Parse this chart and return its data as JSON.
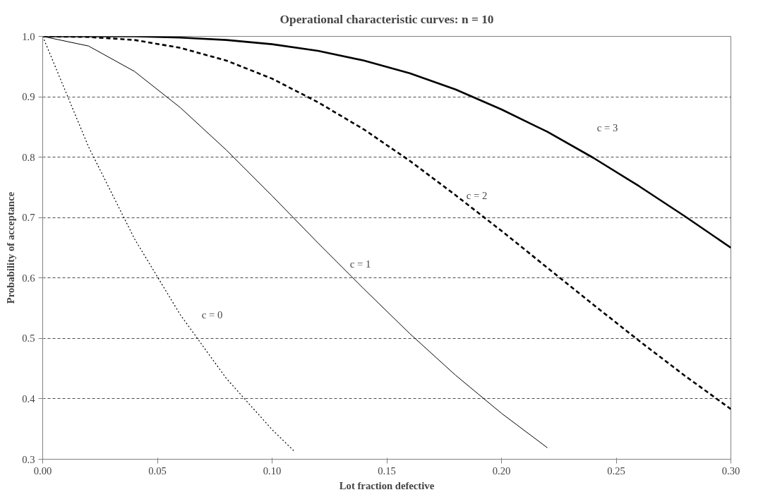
{
  "chart_data": {
    "type": "line",
    "title": "Operational characteristic curves: n = 10",
    "xlabel": "Lot fraction defective",
    "ylabel": "Probability of acceptance",
    "xlim": [
      0,
      0.3
    ],
    "ylim": [
      0.3,
      1.0
    ],
    "xticks": [
      {
        "value": 0,
        "label": "0.00"
      },
      {
        "value": 0.05,
        "label": "0.05"
      },
      {
        "value": 0.1,
        "label": "0.10"
      },
      {
        "value": 0.15,
        "label": "0.15"
      },
      {
        "value": 0.2,
        "label": "0.20"
      },
      {
        "value": 0.25,
        "label": "0.25"
      },
      {
        "value": 0.3,
        "label": "0.30"
      }
    ],
    "yticks": [
      {
        "value": 0.3,
        "label": "0.3"
      },
      {
        "value": 0.4,
        "label": "0.4"
      },
      {
        "value": 0.5,
        "label": "0.5"
      },
      {
        "value": 0.6,
        "label": "0.6"
      },
      {
        "value": 0.7,
        "label": "0.7"
      },
      {
        "value": 0.8,
        "label": "0.8"
      },
      {
        "value": 0.9,
        "label": "0.9"
      },
      {
        "value": 1.0,
        "label": "1.0"
      }
    ],
    "grid": "y",
    "series": [
      {
        "name": "c = 0",
        "color": "#000000",
        "line_style": "dotted",
        "x": [
          0,
          0.02,
          0.04,
          0.06,
          0.08,
          0.1,
          0.11
        ],
        "values": [
          1.0,
          0.817,
          0.665,
          0.539,
          0.434,
          0.349,
          0.312
        ]
      },
      {
        "name": "c = 1",
        "color": "#000000",
        "line_style": "solid",
        "x": [
          0,
          0.02,
          0.04,
          0.06,
          0.08,
          0.1,
          0.12,
          0.14,
          0.16,
          0.18,
          0.2,
          0.22
        ],
        "values": [
          1.0,
          0.984,
          0.942,
          0.882,
          0.812,
          0.736,
          0.658,
          0.582,
          0.508,
          0.439,
          0.376,
          0.319
        ]
      },
      {
        "name": "c = 2",
        "color": "#000000",
        "line_style": "dashed",
        "x": [
          0,
          0.02,
          0.04,
          0.06,
          0.08,
          0.1,
          0.12,
          0.14,
          0.16,
          0.18,
          0.2,
          0.22,
          0.24,
          0.26,
          0.28,
          0.3
        ],
        "values": [
          1.0,
          0.999,
          0.994,
          0.981,
          0.96,
          0.93,
          0.891,
          0.846,
          0.794,
          0.737,
          0.678,
          0.617,
          0.556,
          0.496,
          0.438,
          0.383
        ]
      },
      {
        "name": "c = 3",
        "color": "#000000",
        "line_style": "solid",
        "x": [
          0,
          0.02,
          0.04,
          0.06,
          0.08,
          0.1,
          0.12,
          0.14,
          0.16,
          0.18,
          0.2,
          0.22,
          0.24,
          0.26,
          0.28,
          0.3
        ],
        "values": [
          1.0,
          1.0,
          1.0,
          0.998,
          0.994,
          0.987,
          0.976,
          0.96,
          0.939,
          0.912,
          0.879,
          0.842,
          0.799,
          0.752,
          0.702,
          0.65
        ]
      }
    ]
  }
}
